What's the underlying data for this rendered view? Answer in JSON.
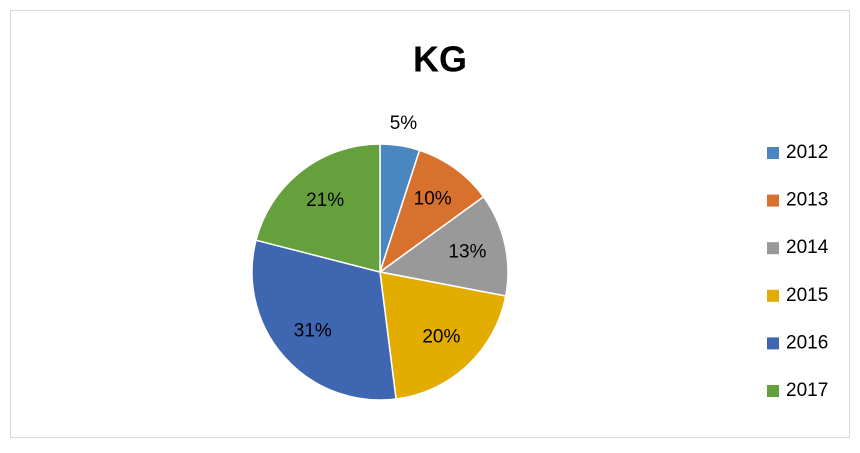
{
  "chart_data": {
    "type": "pie",
    "title": "KG",
    "categories": [
      "2012",
      "2013",
      "2014",
      "2015",
      "2016",
      "2017"
    ],
    "values": [
      5,
      10,
      13,
      20,
      31,
      21
    ],
    "value_labels": [
      "5%",
      "10%",
      "13%",
      "20%",
      "31%",
      "21%"
    ],
    "colors": [
      "#4a87c0",
      "#d9712e",
      "#999999",
      "#e2ac00",
      "#3f66b0",
      "#66a03d"
    ],
    "legend": "right"
  }
}
